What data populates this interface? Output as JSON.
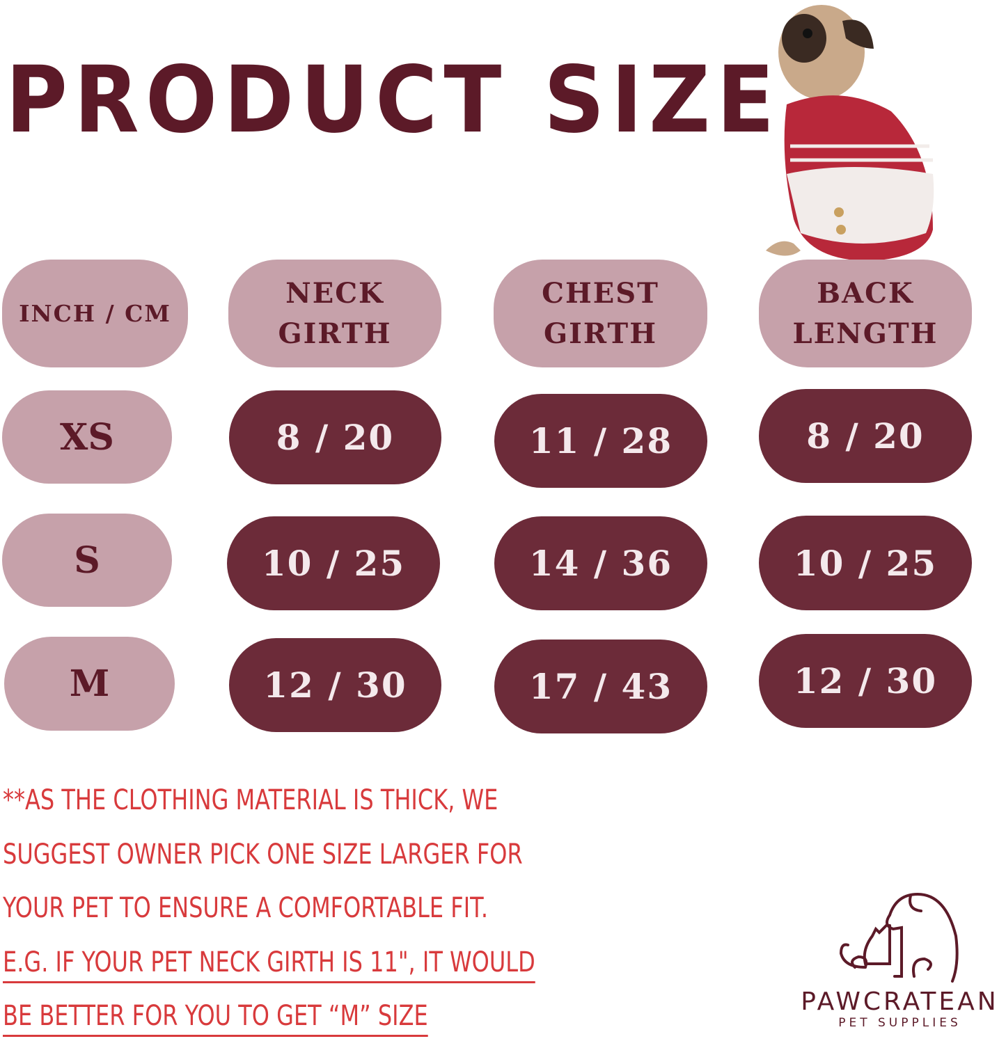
{
  "title": "PRODUCT SIZE",
  "colors": {
    "title": "#5c1a28",
    "header_pill": "#c6a1aa",
    "value_pill": "#6c2b39",
    "note_text": "#d83a3c"
  },
  "table": {
    "headers": [
      [
        "INCH / CM"
      ],
      [
        "NECK",
        "GIRTH"
      ],
      [
        "CHEST",
        "GIRTH"
      ],
      [
        "BACK",
        "LENGTH"
      ]
    ],
    "rows": [
      {
        "size": "XS",
        "neck": "8 / 20",
        "chest": "11 / 28",
        "back": "8 / 20"
      },
      {
        "size": "S",
        "neck": "10 / 25",
        "chest": "14 / 36",
        "back": "10 / 25"
      },
      {
        "size": "M",
        "neck": "12 / 30",
        "chest": "17 / 43",
        "back": "12 / 30"
      }
    ]
  },
  "note": {
    "lines": [
      "**AS THE CLOTHING MATERIAL IS THICK, WE",
      "SUGGEST OWNER PICK ONE SIZE LARGER FOR",
      "YOUR PET TO ENSURE A COMFORTABLE FIT."
    ],
    "underlined_lines": [
      "E.G. IF YOUR PET NECK GIRTH IS 11\", IT WOULD",
      "BE BETTER FOR YOU TO GET  “M”  SIZE"
    ]
  },
  "logo": {
    "brand": "PAWCRATEAN",
    "tagline": "PET SUPPLIES",
    "icon": "dog-and-cat-line-icon"
  },
  "photo": {
    "icon": "pug-in-red-sweater-photo"
  }
}
